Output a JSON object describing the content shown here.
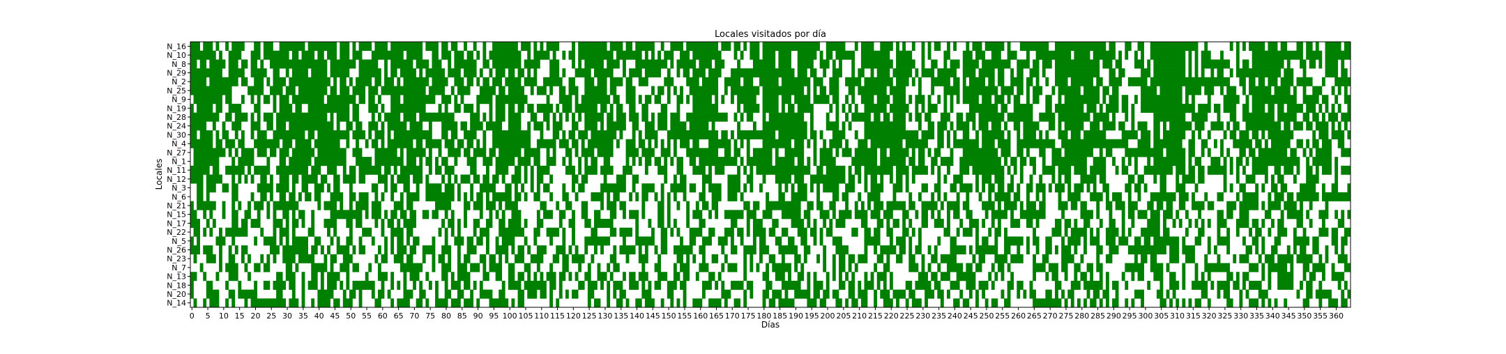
{
  "chart_data": {
    "type": "heatmap",
    "title": "Locales visitados por día",
    "xlabel": "Días",
    "ylabel": "Locales",
    "x_range": [
      0,
      365
    ],
    "x_ticks": [
      0,
      5,
      10,
      15,
      20,
      25,
      30,
      35,
      40,
      45,
      50,
      55,
      60,
      65,
      70,
      75,
      80,
      85,
      90,
      95,
      100,
      105,
      110,
      115,
      120,
      125,
      130,
      135,
      140,
      145,
      150,
      155,
      160,
      165,
      170,
      175,
      180,
      185,
      190,
      195,
      200,
      205,
      210,
      215,
      220,
      225,
      230,
      235,
      240,
      245,
      250,
      255,
      260,
      265,
      270,
      275,
      280,
      285,
      290,
      295,
      300,
      305,
      310,
      315,
      320,
      325,
      330,
      335,
      340,
      345,
      350,
      355,
      360
    ],
    "locales": [
      "N_16",
      "N_10",
      "N_8",
      "N_29",
      "N_2",
      "N_25",
      "N_9",
      "N_19",
      "N_28",
      "N_24",
      "N_30",
      "N_4",
      "N_27",
      "N_1",
      "N_11",
      "N_12",
      "N_3",
      "N_6",
      "N_21",
      "N_15",
      "N_17",
      "N_22",
      "N_5",
      "N_26",
      "N_23",
      "N_7",
      "N_13",
      "N_18",
      "N_20",
      "N_14"
    ],
    "grid": false,
    "colors": {
      "visited": "#008000",
      "not_visited": "#ffffff"
    },
    "visit_probability": [
      0.6,
      0.62,
      0.62,
      0.6,
      0.6,
      0.6,
      0.6,
      0.58,
      0.58,
      0.58,
      0.58,
      0.58,
      0.57,
      0.57,
      0.57,
      0.45,
      0.45,
      0.45,
      0.45,
      0.45,
      0.45,
      0.45,
      0.45,
      0.45,
      0.45,
      0.45,
      0.45,
      0.45,
      0.45,
      0.45
    ],
    "high_activity_periods": [
      [
        0,
        8
      ],
      [
        28,
        45
      ],
      [
        63,
        72
      ],
      [
        96,
        103
      ],
      [
        124,
        132
      ],
      [
        158,
        165
      ],
      [
        180,
        192
      ],
      [
        212,
        225
      ],
      [
        244,
        255
      ],
      [
        273,
        285
      ],
      [
        303,
        312
      ],
      [
        334,
        345
      ]
    ],
    "notes": ""
  }
}
